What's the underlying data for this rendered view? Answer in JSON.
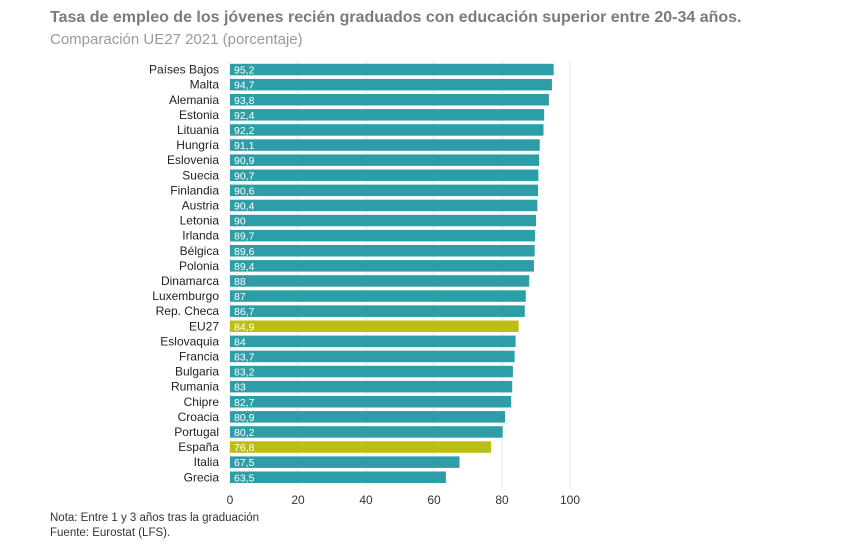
{
  "title": "Tasa de empleo de los jóvenes recién graduados con educación superior entre 20-34 años.",
  "subtitle": "Comparación UE27 2021 (porcentaje)",
  "notes": {
    "note": "Nota: Entre 1 y 3 años tras la graduación",
    "source": "Fuente: Eurostat (LFS)."
  },
  "colors": {
    "bar": "#2d9ea8",
    "highlight": "#bcbf13",
    "grid": "#e4e4e4"
  },
  "chart_data": {
    "type": "bar",
    "orientation": "horizontal",
    "categories": [
      "Países Bajos",
      "Malta",
      "Alemania",
      "Estonia",
      "Lituania",
      "Hungría",
      "Eslovenia",
      "Suecia",
      "Finlandia",
      "Austria",
      "Letonia",
      "Irlanda",
      "Bélgica",
      "Polonia",
      "Dinamarca",
      "Luxemburgo",
      "Rep. Checa",
      "EU27",
      "Eslovaquia",
      "Francia",
      "Bulgaria",
      "Rumania",
      "Chipre",
      "Croacia",
      "Portugal",
      "España",
      "Italia",
      "Grecia"
    ],
    "values": [
      95.2,
      94.7,
      93.8,
      92.4,
      92.2,
      91.1,
      90.9,
      90.7,
      90.6,
      90.4,
      90,
      89.7,
      89.6,
      89.4,
      88,
      87,
      86.7,
      84.9,
      84,
      83.7,
      83.2,
      83,
      82.7,
      80.9,
      80.2,
      76.8,
      67.5,
      63.5
    ],
    "value_labels": [
      "95,2",
      "94,7",
      "93,8",
      "92,4",
      "92,2",
      "91,1",
      "90,9",
      "90,7",
      "90,6",
      "90,4",
      "90",
      "89,7",
      "89,6",
      "89,4",
      "88",
      "87",
      "86,7",
      "84,9",
      "84",
      "83,7",
      "83,2",
      "83",
      "82,7",
      "80,9",
      "80,2",
      "76,8",
      "67,5",
      "63,5"
    ],
    "highlighted": [
      "EU27",
      "España"
    ],
    "xlim": [
      0,
      100
    ],
    "xticks": [
      0,
      20,
      40,
      60,
      80,
      100
    ],
    "grid": "vertical",
    "legend": "none"
  }
}
